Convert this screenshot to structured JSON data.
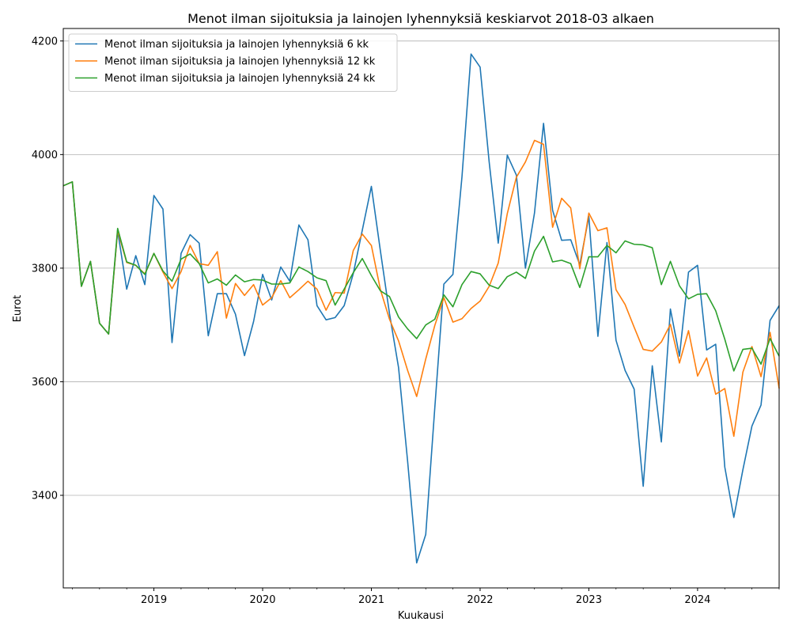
{
  "chart_data": {
    "type": "line",
    "title": "Menot ilman sijoituksia ja lainojen lyhennyksiä keskiarvot 2018-03 alkaen",
    "xlabel": "Kuukausi",
    "ylabel": "Eurot",
    "x_start": "2018-03",
    "x_end": "2024-10",
    "x_ticks": [
      "2019",
      "2020",
      "2021",
      "2022",
      "2023",
      "2024"
    ],
    "y_ticks": [
      "3400",
      "3600",
      "3800",
      "4000",
      "4200"
    ],
    "ylim": [
      3237,
      4222
    ],
    "grid": "horizontal",
    "legend_position": "top-left",
    "series": [
      {
        "name": "Menot ilman sijoituksia ja lainojen lyhennyksiä 6 kk",
        "color": "#1f77b4",
        "values": [
          3945,
          3952,
          3768,
          3812,
          3703,
          3684,
          3866,
          3763,
          3822,
          3771,
          3928,
          3904,
          3669,
          3826,
          3859,
          3844,
          3681,
          3755,
          3755,
          3719,
          3646,
          3706,
          3789,
          3744,
          3802,
          3777,
          3876,
          3850,
          3734,
          3709,
          3713,
          3734,
          3790,
          3867,
          3944,
          3830,
          3720,
          3625,
          3460,
          3281,
          3331,
          3554,
          3772,
          3789,
          3961,
          4177,
          4154,
          3987,
          3844,
          3999,
          3964,
          3800,
          3897,
          4055,
          3902,
          3849,
          3850,
          3806,
          3891,
          3680,
          3845,
          3673,
          3620,
          3587,
          3416,
          3628,
          3494,
          3728,
          3645,
          3793,
          3805,
          3656,
          3666,
          3450,
          3361,
          3445,
          3522,
          3559,
          3708,
          3734
        ]
      },
      {
        "name": "Menot ilman sijoituksia ja lainojen lyhennyksiä 12 kk",
        "color": "#ff7f0e",
        "values": [
          3945,
          3952,
          3768,
          3812,
          3703,
          3684,
          3866,
          3810,
          3805,
          3790,
          3826,
          3793,
          3764,
          3794,
          3840,
          3808,
          3805,
          3829,
          3712,
          3773,
          3752,
          3771,
          3735,
          3748,
          3778,
          3748,
          3762,
          3777,
          3763,
          3726,
          3757,
          3756,
          3831,
          3860,
          3840,
          3762,
          3710,
          3672,
          3620,
          3574,
          3640,
          3699,
          3748,
          3705,
          3711,
          3729,
          3742,
          3768,
          3809,
          3896,
          3960,
          3987,
          4025,
          4018,
          3872,
          3923,
          3906,
          3799,
          3897,
          3866,
          3871,
          3762,
          3736,
          3696,
          3657,
          3654,
          3670,
          3701,
          3633,
          3690,
          3610,
          3642,
          3578,
          3588,
          3504,
          3617,
          3662,
          3609,
          3687,
          3588
        ]
      },
      {
        "name": "Menot ilman sijoituksia ja lainojen lyhennyksiä 24 kk",
        "color": "#2ca02c",
        "values": [
          3945,
          3952,
          3768,
          3812,
          3703,
          3684,
          3870,
          3811,
          3805,
          3789,
          3826,
          3795,
          3777,
          3816,
          3825,
          3808,
          3774,
          3781,
          3770,
          3788,
          3776,
          3780,
          3779,
          3772,
          3772,
          3774,
          3802,
          3794,
          3783,
          3778,
          3735,
          3763,
          3792,
          3817,
          3787,
          3760,
          3750,
          3714,
          3693,
          3676,
          3700,
          3710,
          3753,
          3732,
          3771,
          3794,
          3790,
          3770,
          3764,
          3785,
          3793,
          3782,
          3830,
          3856,
          3811,
          3814,
          3808,
          3766,
          3820,
          3820,
          3840,
          3827,
          3848,
          3842,
          3841,
          3836,
          3771,
          3812,
          3769,
          3746,
          3754,
          3755,
          3725,
          3675,
          3619,
          3657,
          3659,
          3631,
          3676,
          3645
        ]
      }
    ]
  }
}
